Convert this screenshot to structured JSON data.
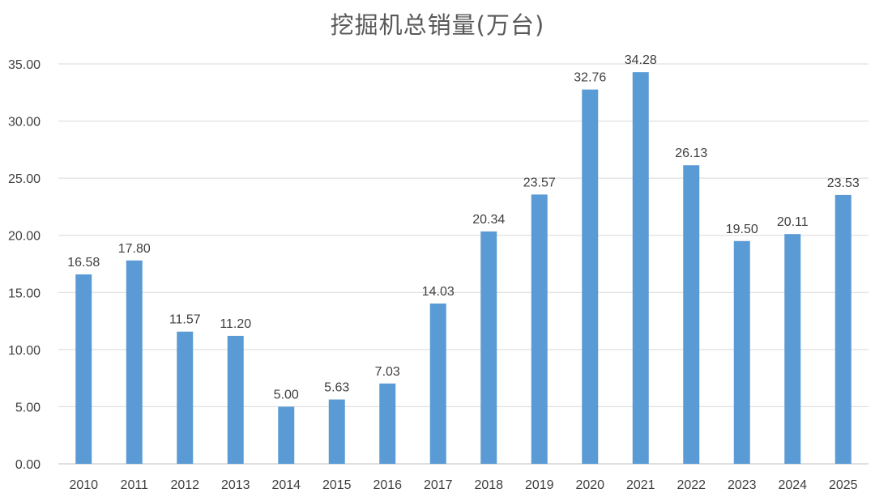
{
  "chart_data": {
    "type": "bar",
    "title": "挖掘机总销量(万台)",
    "xlabel": "",
    "ylabel": "",
    "categories": [
      "2010",
      "2011",
      "2012",
      "2013",
      "2014",
      "2015",
      "2016",
      "2017",
      "2018",
      "2019",
      "2020",
      "2021",
      "2022",
      "2023",
      "2024",
      "2025"
    ],
    "values": [
      16.58,
      17.8,
      11.57,
      11.2,
      5.0,
      5.63,
      7.03,
      14.03,
      20.34,
      23.57,
      32.76,
      34.28,
      26.13,
      19.5,
      20.11,
      23.53
    ],
    "ylim": [
      0,
      35
    ],
    "yticks": [
      "0.00",
      "5.00",
      "10.00",
      "15.00",
      "20.00",
      "25.00",
      "30.00",
      "35.00"
    ],
    "data_labels": [
      "16.58",
      "17.80",
      "11.57",
      "11.20",
      "5.00",
      "5.63",
      "7.03",
      "14.03",
      "20.34",
      "23.57",
      "32.76",
      "34.28",
      "26.13",
      "19.50",
      "20.11",
      "23.53"
    ],
    "grid": true,
    "legend": "none",
    "bar_color": "#5b9bd5",
    "grid_color": "#d9d9d9",
    "text_color": "#3f3f3f"
  }
}
